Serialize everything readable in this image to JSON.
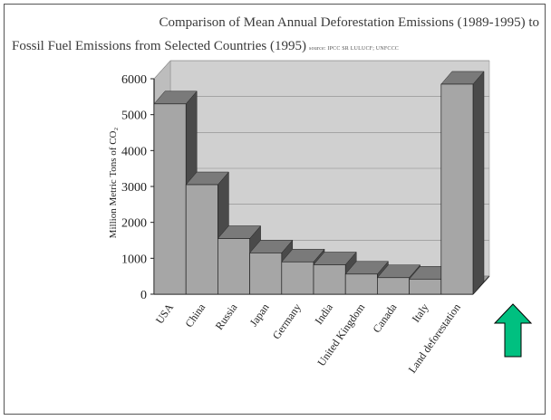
{
  "chart_data": {
    "type": "bar",
    "title": "Comparison of Mean Annual Deforestation Emissions (1989-1995) to",
    "subtitle": "Fossil Fuel Emissions from Selected Countries (1995)",
    "source": "source: IPCC SR LULUCF; UNFCCC",
    "ylabel": "Million Metric Tons of CO₂",
    "xlabel": "",
    "ylim": [
      0,
      6000
    ],
    "yticks": [
      0,
      1000,
      2000,
      3000,
      4000,
      5000,
      6000
    ],
    "categories": [
      "USA",
      "China",
      "Russia",
      "Japan",
      "Germany",
      "India",
      "United Kingdom",
      "Canada",
      "Italy",
      "Land deforestation"
    ],
    "values": [
      5300,
      3050,
      1550,
      1150,
      900,
      820,
      560,
      460,
      420,
      5850
    ],
    "grid": true,
    "three_d": true
  },
  "annotation": {
    "arrow_color": "#00c080",
    "arrow_direction": "up"
  },
  "colors": {
    "bar_front": "#a6a6a6",
    "bar_side": "#4a4a4a",
    "bar_top": "#7a7a7a",
    "wall": "#d0d0d0",
    "floor": "#9c9c9c"
  }
}
